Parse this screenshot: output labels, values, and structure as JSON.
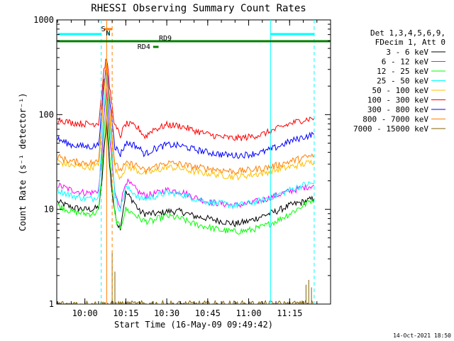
{
  "chart_data": {
    "type": "line",
    "title": "RHESSI Observing Summary Count Rates",
    "xlabel": "Start Time (16-May-09 09:49:42)",
    "ylabel": "Count Rate (s⁻¹ detector⁻¹)",
    "yscale": "log",
    "ylim": [
      1,
      1000
    ],
    "xlim": [
      "09:49:42",
      "11:30:00"
    ],
    "x_ticks": [
      "10:00",
      "10:15",
      "10:30",
      "10:45",
      "11:00",
      "11:15"
    ],
    "y_ticks": [
      "1",
      "10",
      "100",
      "1000"
    ],
    "legend_header": [
      "Det 1,3,4,5,6,9,",
      "FDecim 1, Att 0"
    ],
    "legend_position": "right",
    "x_times": [
      "09:50",
      "09:55",
      "10:00",
      "10:03",
      "10:05",
      "10:06",
      "10:07",
      "10:08",
      "10:09",
      "10:10",
      "10:11",
      "10:12",
      "10:13",
      "10:15",
      "10:18",
      "10:20",
      "10:22",
      "10:25",
      "10:27",
      "10:30",
      "10:35",
      "10:40",
      "10:45",
      "10:50",
      "10:55",
      "11:00",
      "11:05",
      "11:10",
      "11:15",
      "11:20",
      "11:24"
    ],
    "series": [
      {
        "name": "3 - 6 keV",
        "color": "#000000",
        "values": [
          12,
          10.5,
          10,
          10,
          10.5,
          16,
          40,
          90,
          30,
          15,
          9,
          7,
          6.5,
          15,
          12,
          9.5,
          9,
          9,
          9,
          9.5,
          9.5,
          8.5,
          8,
          7.5,
          7,
          7.5,
          8.5,
          9.5,
          11,
          12,
          13
        ]
      },
      {
        "name": "6 - 12 keV",
        "color": "#ff00ff",
        "values": [
          18,
          16,
          15,
          15,
          16,
          30,
          90,
          200,
          60,
          30,
          15,
          12,
          11,
          20,
          17,
          15,
          14,
          14.5,
          15,
          16,
          15.5,
          13.5,
          12,
          11.5,
          11,
          11.5,
          12.5,
          14,
          15.5,
          17,
          18
        ]
      },
      {
        "name": "12 - 25 keV",
        "color": "#00ff00",
        "values": [
          11,
          9.5,
          9,
          9,
          9.5,
          20,
          60,
          140,
          40,
          18,
          8.5,
          7,
          6.5,
          10,
          9,
          8,
          7.5,
          7.5,
          8,
          8.5,
          8,
          7,
          6.5,
          6,
          5.8,
          6,
          6.5,
          7.5,
          9,
          11,
          13
        ]
      },
      {
        "name": "25 - 50 keV",
        "color": "#00ffff",
        "values": [
          16,
          14,
          13,
          13,
          14,
          40,
          120,
          280,
          80,
          40,
          14,
          11,
          10,
          17,
          15,
          13,
          13,
          13.5,
          14,
          15,
          14.5,
          13,
          12,
          11.5,
          11,
          11.5,
          12.5,
          14,
          16,
          18,
          19
        ]
      },
      {
        "name": "50 - 100 keV",
        "color": "#ffc000",
        "values": [
          32,
          29,
          28,
          28,
          29,
          60,
          180,
          380,
          110,
          50,
          27,
          24,
          22,
          28,
          27,
          25,
          24,
          25,
          26,
          28,
          27,
          25,
          24,
          23,
          22,
          23,
          24,
          26,
          28,
          30,
          32
        ]
      },
      {
        "name": "100 - 300 keV",
        "color": "#ff0000",
        "values": [
          90,
          82,
          80,
          80,
          82,
          150,
          300,
          400,
          200,
          120,
          75,
          68,
          60,
          80,
          76,
          70,
          58,
          70,
          72,
          78,
          76,
          68,
          62,
          58,
          56,
          58,
          62,
          70,
          80,
          88,
          92
        ]
      },
      {
        "name": "300 - 800 keV",
        "color": "#0000ff",
        "values": [
          55,
          48,
          46,
          46,
          48,
          100,
          220,
          320,
          150,
          90,
          46,
          42,
          38,
          50,
          48,
          44,
          38,
          43,
          45,
          48,
          47,
          43,
          40,
          38,
          37,
          38,
          40,
          45,
          52,
          58,
          62
        ]
      },
      {
        "name": "800 - 7000 keV",
        "color": "#ff8000",
        "values": [
          36,
          32,
          31,
          31,
          32,
          70,
          200,
          350,
          120,
          60,
          30,
          28,
          26,
          30,
          30,
          28,
          25,
          28,
          29,
          31,
          30,
          28,
          27,
          26,
          25,
          26,
          27,
          29,
          32,
          35,
          37
        ]
      },
      {
        "name": "7000 - 15000 keV",
        "color": "#806000",
        "values": [
          1,
          1,
          1,
          1,
          1,
          1,
          1,
          1,
          1,
          1,
          1,
          1,
          1,
          1,
          1,
          1,
          1,
          1,
          1,
          1,
          1,
          1,
          1,
          1,
          1,
          1,
          1,
          1,
          1,
          1,
          1
        ]
      }
    ],
    "annotations": [
      {
        "label": "S",
        "color": "#ff8000",
        "start": "10:07",
        "end": "10:10"
      },
      {
        "label": "N",
        "color": "#00ffff",
        "start": "10:08",
        "end": "10:09"
      },
      {
        "label": "RD9",
        "color": "#008000",
        "start": "09:49:42",
        "end": "11:30:00"
      },
      {
        "label": "RD4",
        "color": "#008000",
        "start": "10:25",
        "end": "10:27"
      }
    ],
    "bars": [
      {
        "label": "cyan",
        "color": "#00ffff",
        "start": "09:49:42",
        "end": "10:06"
      },
      {
        "label": "cyan",
        "color": "#00ffff",
        "start": "11:08",
        "end": "11:24"
      }
    ],
    "vlines": [
      {
        "time": "10:06",
        "color": "#00ffff",
        "style": "dash"
      },
      {
        "time": "10:08",
        "color": "#ff8000",
        "style": "solid"
      },
      {
        "time": "10:10",
        "color": "#ff8000",
        "style": "dash"
      },
      {
        "time": "11:08",
        "color": "#00ffff",
        "style": "solid"
      },
      {
        "time": "11:24",
        "color": "#00ffff",
        "style": "dash"
      }
    ]
  },
  "timestamp": "14-Oct-2021 18:50"
}
